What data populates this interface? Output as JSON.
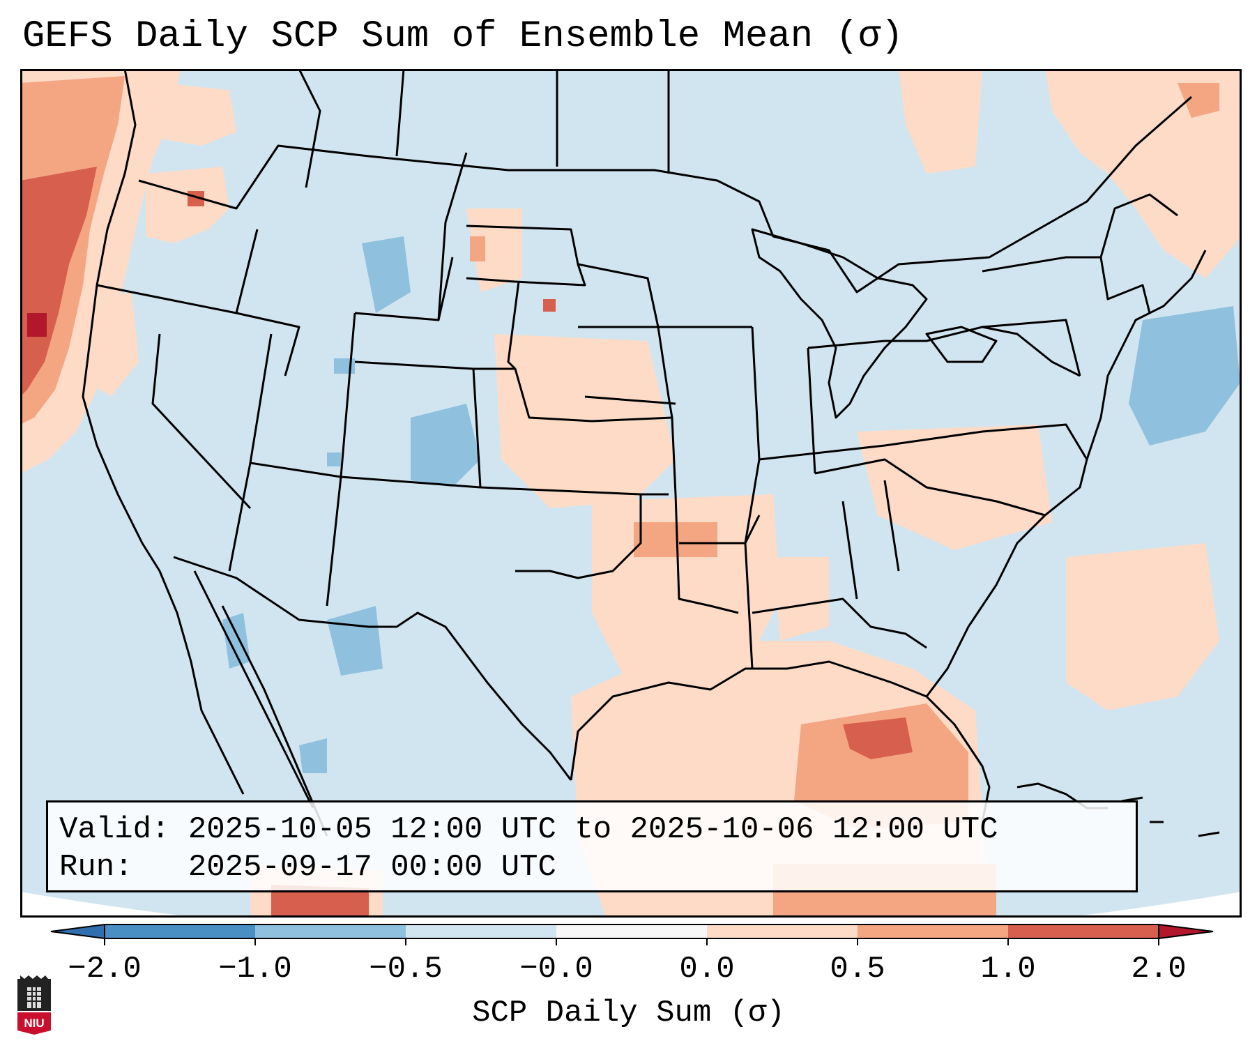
{
  "title": "GEFS Daily SCP Sum of Ensemble Mean (σ)",
  "info": {
    "valid_line": "Valid: 2025-10-05 12:00 UTC to 2025-10-06 12:00 UTC",
    "run_line": "Run:   2025-09-17 00:00 UTC"
  },
  "colorbar": {
    "label": "SCP Daily Sum (σ)",
    "ticks": [
      "−2.0",
      "−1.0",
      "−0.5",
      "−0.0",
      "0.0",
      "0.5",
      "1.0",
      "2.0"
    ],
    "bins": [
      {
        "color": "#4a8fc4"
      },
      {
        "color": "#8fc1de"
      },
      {
        "color": "#d1e5f0"
      },
      {
        "color": "#f7f7f7"
      },
      {
        "color": "#fddbc7"
      },
      {
        "color": "#f4a582"
      },
      {
        "color": "#d6604d"
      }
    ],
    "extend_low_color": "#2f6fb0",
    "extend_high_color": "#b2182b"
  },
  "map": {
    "background_color": "#d1e5f0",
    "ocean_color": "#d1e5f0",
    "outside_color": "#ffffff",
    "border_color": "#000000"
  },
  "logo": {
    "text": "NIU"
  }
}
